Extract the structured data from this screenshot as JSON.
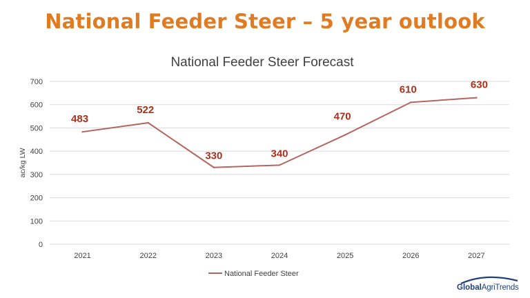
{
  "slide": {
    "title": "National Feeder Steer – 5 year outlook"
  },
  "logo": {
    "word_bold": "Global",
    "word_regular": "AgriTrends"
  },
  "colors": {
    "title": "#e07b22",
    "series_line": "#b5655f",
    "data_label": "#a8301c",
    "gridline": "#d9d9d9",
    "text": "#404040",
    "logo": "#1f3f77"
  },
  "chart_data": {
    "type": "line",
    "title": "National Feeder Steer Forecast",
    "ylabel": "ac/kg LW",
    "xlabel": "",
    "categories": [
      "2021",
      "2022",
      "2023",
      "2024",
      "2025",
      "2026",
      "2027"
    ],
    "ylim": [
      0,
      700
    ],
    "yticks": [
      0,
      100,
      200,
      300,
      400,
      500,
      600,
      700
    ],
    "grid": true,
    "legend_position": "bottom",
    "series": [
      {
        "name": "National Feeder Steer",
        "values": [
          483,
          522,
          330,
          340,
          470,
          610,
          630
        ],
        "data_labels": [
          "483",
          "522",
          "330",
          "340",
          "470",
          "610",
          "630"
        ]
      }
    ]
  }
}
